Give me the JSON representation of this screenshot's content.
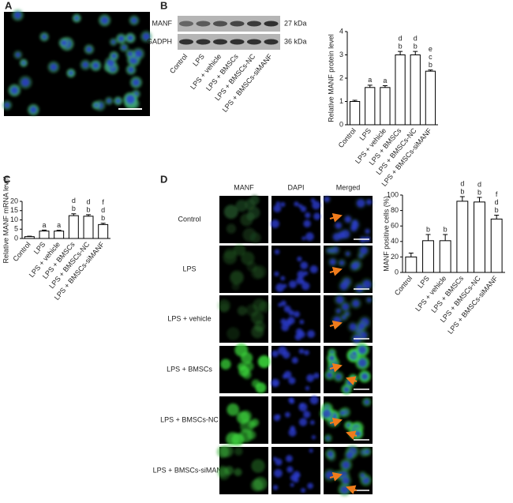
{
  "panels": {
    "a": "A",
    "b": "B",
    "c": "C",
    "d": "D"
  },
  "blot": {
    "rows": [
      "MANF",
      "GADPH"
    ],
    "sizes": [
      "27 kDa",
      "36 kDa"
    ],
    "lanes": [
      "Control",
      "LPS",
      "LPS + vehicle",
      "LPS + BMSCs",
      "LPS + BMSCs-NC",
      "LPS + BMSCs-siMANF"
    ]
  },
  "microscopy": {
    "columns": [
      "MANF",
      "DAPI",
      "Merged"
    ],
    "rows": [
      "Control",
      "LPS",
      "LPS + vehicle",
      "LPS + BMSCs",
      "LPS + BMSCs-NC",
      "LPS + BMSCs-siMANF"
    ]
  },
  "chart_data": [
    {
      "type": "bar",
      "y_label": "Relative MANF protein level",
      "categories": [
        "Control",
        "LPS",
        "LPS + vehicle",
        "LPS + BMSCs",
        "LPS + BMSCs-NC",
        "LPS + BMSCs-siMANF"
      ],
      "values": [
        1,
        1.6,
        1.6,
        3.0,
        3.0,
        2.3
      ],
      "errors": [
        0.05,
        0.1,
        0.08,
        0.15,
        0.15,
        0.05
      ],
      "annotations": [
        [],
        [
          "a"
        ],
        [
          "a"
        ],
        [
          "d",
          "b"
        ],
        [
          "d",
          "b"
        ],
        [
          "e",
          "c",
          "b"
        ]
      ],
      "ylim": [
        0,
        4
      ],
      "yticks": [
        0,
        1,
        2,
        3,
        4
      ]
    },
    {
      "type": "bar",
      "y_label": "Relative MANF mRNA level",
      "categories": [
        "Control",
        "LPS",
        "LPS + vehicle",
        "LPS + BMSCs",
        "LPS + BMSCs-NC",
        "LPS + BMSCs-siMANF"
      ],
      "values": [
        1,
        4,
        4,
        12.3,
        12,
        7.5
      ],
      "errors": [
        0.2,
        0.5,
        0.4,
        1,
        0.8,
        0.7
      ],
      "annotations": [
        [],
        [
          "a"
        ],
        [
          "a"
        ],
        [
          "d",
          "b"
        ],
        [
          "d",
          "b"
        ],
        [
          "f",
          "d",
          "b"
        ]
      ],
      "ylim": [
        0,
        20
      ],
      "yticks": [
        0,
        5,
        10,
        15,
        20
      ]
    },
    {
      "type": "bar",
      "y_label": "MANF positive cells (%)",
      "categories": [
        "Control",
        "LPS",
        "LPS + vehicle",
        "LPS + BMSCs",
        "LPS + BMSCs-NC",
        "LPS + BMSCs-siMANF"
      ],
      "values": [
        20,
        41,
        41,
        92,
        91,
        69
      ],
      "errors": [
        5,
        8,
        8,
        6,
        6,
        5
      ],
      "annotations": [
        [],
        [
          "b"
        ],
        [
          "b"
        ],
        [
          "d",
          "b"
        ],
        [
          "d",
          "b"
        ],
        [
          "f",
          "d",
          "b"
        ]
      ],
      "ylim": [
        0,
        100
      ],
      "yticks": [
        0,
        20,
        40,
        60,
        80,
        100
      ]
    }
  ]
}
